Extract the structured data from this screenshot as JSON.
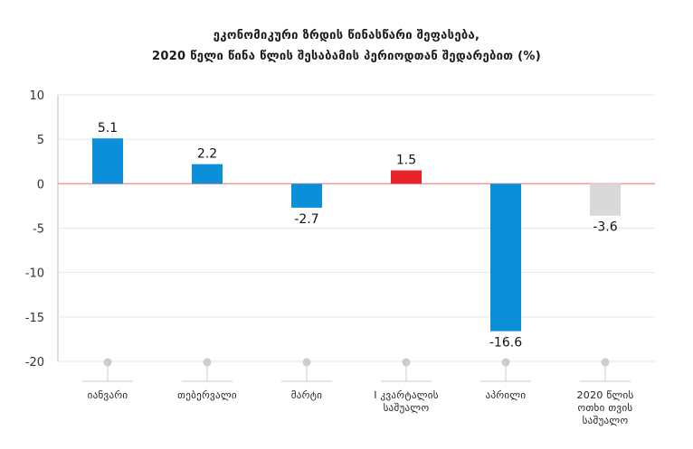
{
  "title_line1": "ეკონომიკური ზრდის წინასწარი შეფასება,",
  "title_line2": "2020 წელი წინა წლის შესაბამის პერიოდთან შედარებით (%)",
  "chart_data": {
    "type": "bar",
    "title": "ეკონომიკური ზრდის წინასწარი შეფასება, 2020 წელი წინა წლის შესაბამის პერიოდთან შედარებით (%)",
    "categories": [
      [
        "იანვარი"
      ],
      [
        "თებერვალი"
      ],
      [
        "მარტი"
      ],
      [
        "I კვარტალის",
        "საშუალო"
      ],
      [
        "აპრილი"
      ],
      [
        "2020 წლის",
        "ოთხი თვის",
        "საშუალო"
      ]
    ],
    "values": [
      5.1,
      2.2,
      -2.7,
      1.5,
      -16.6,
      -3.6
    ],
    "value_labels": [
      "5.1",
      "2.2",
      "-2.7",
      "1.5",
      "-16.6",
      "-3.6"
    ],
    "bar_colors": [
      "#0a8fd8",
      "#0a8fd8",
      "#0a8fd8",
      "#e8232a",
      "#0a8fd8",
      "#d9d9d9"
    ],
    "ylim": [
      -20,
      10
    ],
    "yticks": [
      10,
      5,
      0,
      -5,
      -10,
      -15,
      -20
    ],
    "grid": true,
    "zero_line_color": "#f09a9a",
    "xlabel": "",
    "ylabel": ""
  }
}
